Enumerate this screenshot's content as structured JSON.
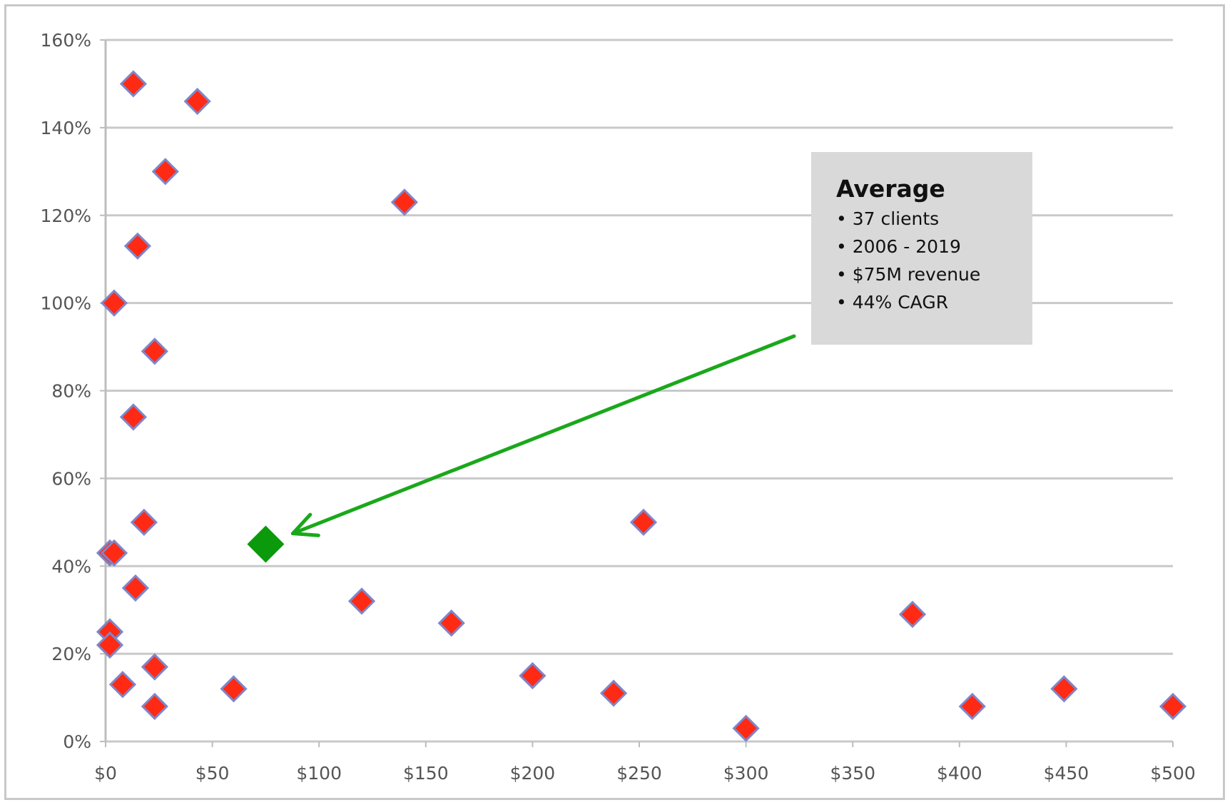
{
  "chart_data": {
    "type": "scatter",
    "title": "",
    "xlabel": "",
    "ylabel": "",
    "xlim": [
      0,
      500
    ],
    "ylim": [
      0,
      160
    ],
    "x_ticks": [
      0,
      50,
      100,
      150,
      200,
      250,
      300,
      350,
      400,
      450,
      500
    ],
    "y_ticks": [
      0,
      20,
      40,
      60,
      80,
      100,
      120,
      140,
      160
    ],
    "x_tick_labels": [
      "$0",
      "$50",
      "$100",
      "$150",
      "$200",
      "$250",
      "$300",
      "$350",
      "$400",
      "$450",
      "$500"
    ],
    "y_tick_labels": [
      "0%",
      "20%",
      "40%",
      "60%",
      "80%",
      "100%",
      "120%",
      "140%",
      "160%"
    ],
    "grid": "horizontal",
    "series": [
      {
        "color": "#ff2a14",
        "marker": "diamond",
        "points": [
          {
            "x": 13,
            "y": 150
          },
          {
            "x": 43,
            "y": 146
          },
          {
            "x": 28,
            "y": 130
          },
          {
            "x": 140,
            "y": 123
          },
          {
            "x": 15,
            "y": 113
          },
          {
            "x": 4,
            "y": 100
          },
          {
            "x": 23,
            "y": 89
          },
          {
            "x": 13,
            "y": 74
          },
          {
            "x": 18,
            "y": 50
          },
          {
            "x": 252,
            "y": 50
          },
          {
            "x": 2,
            "y": 43
          },
          {
            "x": 4,
            "y": 43
          },
          {
            "x": 14,
            "y": 35
          },
          {
            "x": 120,
            "y": 32
          },
          {
            "x": 162,
            "y": 27
          },
          {
            "x": 378,
            "y": 29
          },
          {
            "x": 2,
            "y": 25
          },
          {
            "x": 2,
            "y": 22
          },
          {
            "x": 23,
            "y": 17
          },
          {
            "x": 8,
            "y": 13
          },
          {
            "x": 60,
            "y": 12
          },
          {
            "x": 200,
            "y": 15
          },
          {
            "x": 238,
            "y": 11
          },
          {
            "x": 23,
            "y": 8
          },
          {
            "x": 406,
            "y": 8
          },
          {
            "x": 449,
            "y": 12
          },
          {
            "x": 500,
            "y": 8
          },
          {
            "x": 300,
            "y": 3
          }
        ]
      },
      {
        "color": "#0b9a0b",
        "marker": "diamond",
        "points": [
          {
            "x": 75,
            "y": 45
          }
        ]
      }
    ],
    "annotation": {
      "title": "Average",
      "lines": [
        "• 37 clients",
        "• 2006 - 2019",
        "• $75M revenue",
        "• 44% CAGR"
      ],
      "box_color": "#d9d9d9",
      "arrow_color": "#1aa81a",
      "arrow_from": "annotation box",
      "arrow_to": "average point"
    }
  }
}
